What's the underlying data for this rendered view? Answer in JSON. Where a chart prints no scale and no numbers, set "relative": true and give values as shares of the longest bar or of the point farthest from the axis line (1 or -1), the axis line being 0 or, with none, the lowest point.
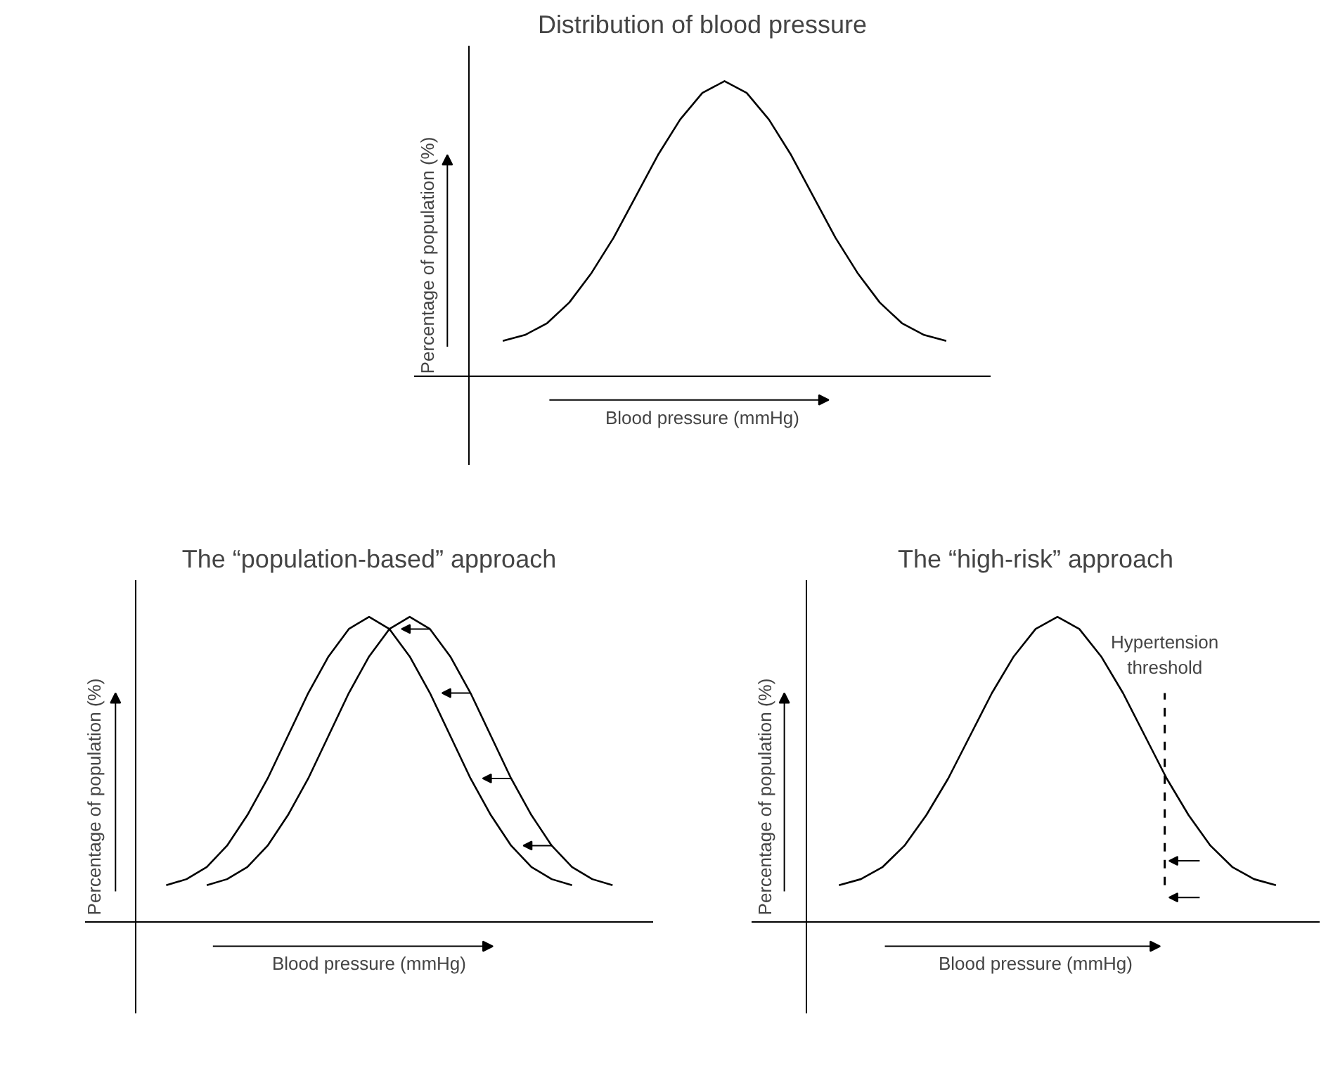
{
  "chart_data": [
    {
      "type": "line",
      "title": "Distribution of blood pressure",
      "xlabel": "Blood pressure (mmHg)",
      "ylabel": "Percentage of population (%)",
      "relative": true,
      "categories": [
        null,
        null,
        null,
        null,
        null,
        null,
        null,
        null,
        null,
        null,
        null,
        null,
        null,
        null,
        null,
        null,
        null,
        null,
        null,
        null,
        null
      ],
      "series": [
        {
          "color": "#000000",
          "values": [
            0.12,
            0.14,
            0.18,
            0.25,
            0.35,
            0.47,
            0.61,
            0.75,
            0.87,
            0.96,
            1.0,
            0.96,
            0.87,
            0.75,
            0.61,
            0.47,
            0.35,
            0.25,
            0.18,
            0.14,
            0.12
          ]
        }
      ]
    },
    {
      "type": "line",
      "title": "The “population-based” approach",
      "xlabel": "Blood pressure (mmHg)",
      "ylabel": "Percentage of population (%)",
      "relative": true,
      "categories": [
        null,
        null,
        null,
        null,
        null,
        null,
        null,
        null,
        null,
        null,
        null,
        null,
        null,
        null,
        null,
        null,
        null,
        null,
        null,
        null,
        null,
        null,
        null
      ],
      "series": [
        {
          "color": "#000000",
          "values": [
            0.12,
            0.14,
            0.18,
            0.25,
            0.35,
            0.47,
            0.61,
            0.75,
            0.87,
            0.96,
            1.0,
            0.96,
            0.87,
            0.75,
            0.61,
            0.47,
            0.35,
            0.25,
            0.18,
            0.14,
            0.12,
            null,
            null
          ]
        },
        {
          "color": "#000000",
          "values": [
            null,
            null,
            0.12,
            0.14,
            0.18,
            0.25,
            0.35,
            0.47,
            0.61,
            0.75,
            0.87,
            0.96,
            1.0,
            0.96,
            0.87,
            0.75,
            0.61,
            0.47,
            0.35,
            0.25,
            0.18,
            0.14,
            0.12
          ]
        }
      ]
    },
    {
      "type": "line",
      "title": "The “high-risk” approach",
      "xlabel": "Blood pressure (mmHg)",
      "ylabel": "Percentage of population (%)",
      "relative": true,
      "categories": [
        null,
        null,
        null,
        null,
        null,
        null,
        null,
        null,
        null,
        null,
        null,
        null,
        null,
        null,
        null,
        null,
        null,
        null,
        null,
        null,
        null
      ],
      "series": [
        {
          "color": "#000000",
          "values": [
            0.12,
            0.14,
            0.18,
            0.25,
            0.35,
            0.47,
            0.61,
            0.75,
            0.87,
            0.96,
            1.0,
            0.96,
            0.87,
            0.75,
            0.61,
            0.47,
            0.35,
            0.25,
            0.18,
            0.14,
            0.12
          ]
        }
      ],
      "annotations": [
        "Hypertension threshold"
      ]
    }
  ]
}
